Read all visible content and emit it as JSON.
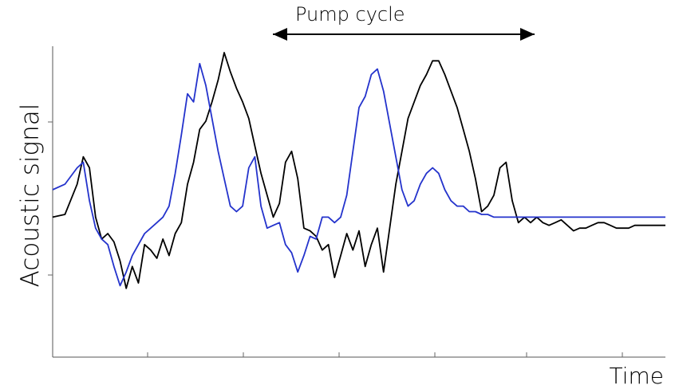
{
  "chart_data": {
    "type": "line",
    "title": "",
    "xlabel": "Time",
    "ylabel": "Acoustic signal",
    "annotation": "Pump cycle",
    "xlim": [
      0,
      100
    ],
    "ylim": [
      0,
      100
    ],
    "grid": false,
    "series": [
      {
        "color": "#000000",
        "x": [
          0,
          2,
          4,
          5,
          6,
          7,
          8,
          9,
          10,
          11,
          12,
          13,
          14,
          15,
          16,
          17,
          18,
          19,
          20,
          21,
          22,
          23,
          24,
          25,
          26,
          27,
          28,
          29,
          30,
          31,
          32,
          33,
          34,
          35,
          36,
          37,
          38,
          39,
          40,
          41,
          42,
          43,
          44,
          45,
          46,
          47,
          48,
          49,
          50,
          51,
          52,
          53,
          54,
          55,
          56,
          57,
          58,
          59,
          60,
          61,
          62,
          63,
          64,
          65,
          66,
          67,
          68,
          69,
          70,
          71,
          72,
          73,
          74,
          75,
          76,
          77,
          78,
          79,
          80,
          81,
          82,
          83,
          84,
          85,
          86,
          87,
          88,
          89,
          90,
          91,
          92,
          93,
          94,
          95,
          96,
          97,
          98,
          99,
          100
        ],
        "y": [
          40,
          41,
          52,
          62,
          58,
          40,
          32,
          34,
          31,
          24,
          14,
          22,
          16,
          30,
          28,
          25,
          32,
          26,
          34,
          38,
          52,
          60,
          72,
          75,
          82,
          90,
          100,
          93,
          87,
          82,
          76,
          66,
          56,
          48,
          40,
          45,
          60,
          64,
          54,
          36,
          35,
          33,
          28,
          30,
          18,
          26,
          34,
          28,
          35,
          22,
          30,
          36,
          20,
          36,
          52,
          64,
          76,
          82,
          88,
          92,
          97,
          97,
          92,
          86,
          80,
          72,
          64,
          54,
          42,
          44,
          48,
          58,
          60,
          46,
          38,
          40,
          38,
          40,
          38,
          37,
          38,
          39,
          37,
          35,
          36,
          36,
          37,
          38,
          38,
          37,
          36,
          36,
          36,
          37,
          37,
          37,
          37,
          37,
          37
        ]
      },
      {
        "color": "#2433cc",
        "x": [
          0,
          2,
          4,
          5,
          6,
          7,
          8,
          9,
          10,
          11,
          12,
          13,
          14,
          15,
          16,
          17,
          18,
          19,
          20,
          21,
          22,
          23,
          24,
          25,
          26,
          27,
          28,
          29,
          30,
          31,
          32,
          33,
          34,
          35,
          36,
          37,
          38,
          39,
          40,
          41,
          42,
          43,
          44,
          45,
          46,
          47,
          48,
          49,
          50,
          51,
          52,
          53,
          54,
          55,
          56,
          57,
          58,
          59,
          60,
          61,
          62,
          63,
          64,
          65,
          66,
          67,
          68,
          69,
          70,
          71,
          72,
          73,
          74,
          75,
          76,
          77,
          78,
          79,
          80,
          81,
          82,
          83,
          84,
          85,
          86,
          87,
          88,
          89,
          90,
          91,
          92,
          93,
          94,
          95,
          96,
          97,
          98,
          99,
          100
        ],
        "y": [
          50,
          52,
          58,
          60,
          46,
          36,
          32,
          30,
          22,
          15,
          20,
          26,
          30,
          34,
          36,
          38,
          40,
          44,
          56,
          70,
          85,
          82,
          96,
          88,
          76,
          64,
          54,
          44,
          42,
          44,
          58,
          62,
          44,
          36,
          37,
          38,
          30,
          27,
          20,
          26,
          33,
          32,
          40,
          40,
          38,
          40,
          48,
          64,
          80,
          84,
          92,
          94,
          86,
          74,
          62,
          50,
          44,
          46,
          52,
          56,
          58,
          56,
          50,
          46,
          44,
          44,
          42,
          42,
          41,
          41,
          40,
          40,
          40,
          40,
          40,
          40,
          40,
          40,
          40,
          40,
          40,
          40,
          40,
          40,
          40,
          40,
          40,
          40,
          40,
          40,
          40,
          40,
          40,
          40,
          40,
          40,
          40,
          40,
          40
        ]
      }
    ]
  }
}
